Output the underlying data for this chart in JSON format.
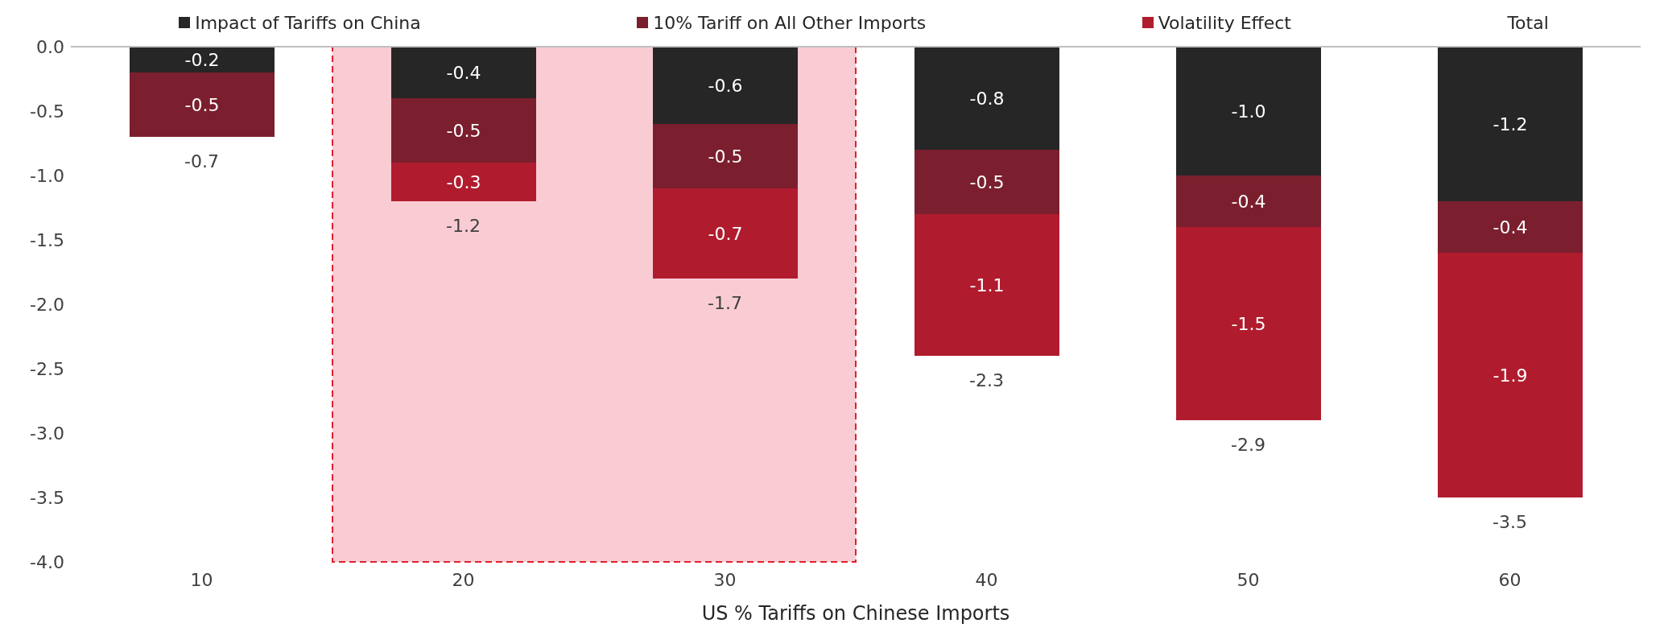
{
  "chart_data": {
    "type": "bar",
    "stacked": true,
    "categories": [
      "10",
      "20",
      "30",
      "40",
      "50",
      "60"
    ],
    "series": [
      {
        "name": "Impact of Tariffs on China",
        "color": "#262626",
        "values": [
          -0.2,
          -0.4,
          -0.6,
          -0.8,
          -1.0,
          -1.2
        ],
        "value_labels": [
          "-0.2",
          "-0.4",
          "-0.6",
          "-0.8",
          "-1.0",
          "-1.2"
        ]
      },
      {
        "name": "10% Tariff on All Other Imports",
        "color": "#7b1f2e",
        "values": [
          -0.5,
          -0.5,
          -0.5,
          -0.5,
          -0.4,
          -0.4
        ],
        "value_labels": [
          "-0.5",
          "-0.5",
          "-0.5",
          "-0.5",
          "-0.4",
          "-0.4"
        ]
      },
      {
        "name": "Volatility Effect",
        "color": "#b01c2e",
        "values": [
          null,
          -0.3,
          -0.7,
          -1.1,
          -1.5,
          -1.9
        ],
        "value_labels": [
          null,
          "-0.3",
          "-0.7",
          "-1.1",
          "-1.5",
          "-1.9"
        ]
      }
    ],
    "totals": [
      "-0.7",
      "-1.2",
      "-1.7",
      "-2.3",
      "-2.9",
      "-3.5"
    ],
    "annotations": [
      "Total"
    ],
    "xlabel": "US % Tariffs on Chinese Imports",
    "ylim": [
      -4,
      0
    ],
    "yticks": [
      {
        "value": 0,
        "label": "0.0"
      },
      {
        "value": -0.5,
        "label": "-0.5"
      },
      {
        "value": -1,
        "label": "-1.0"
      },
      {
        "value": -1.5,
        "label": "-1.5"
      },
      {
        "value": -2,
        "label": "-2.0"
      },
      {
        "value": -2.5,
        "label": "-2.5"
      },
      {
        "value": -3,
        "label": "-3.0"
      },
      {
        "value": -3.5,
        "label": "-3.5"
      },
      {
        "value": -4,
        "label": "-4.0"
      }
    ],
    "ref_lines": [
      {
        "axis": "y",
        "value": 0,
        "color": "#bfbfbf"
      }
    ],
    "bands": [
      {
        "axis": "x",
        "from": "20",
        "to": "30",
        "color": "#f9ccd4"
      }
    ],
    "legend": "top"
  }
}
